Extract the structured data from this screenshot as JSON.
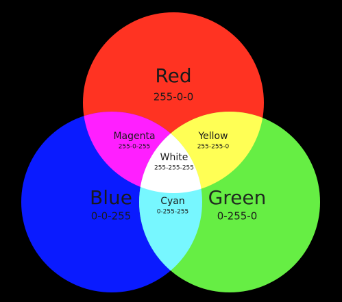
{
  "colors": {
    "background": "#000000",
    "red": "#FF3322",
    "green": "#66EE44",
    "blue": "#0A1BFF",
    "magenta": "#FF1FFF",
    "yellow": "#FFFF55",
    "cyan": "#77F7FF",
    "white": "#FFFFFF"
  },
  "primaries": {
    "red": {
      "name": "Red",
      "code": "255-0-0"
    },
    "blue": {
      "name": "Blue",
      "code": "0-0-255"
    },
    "green": {
      "name": "Green",
      "code": "0-255-0"
    }
  },
  "mixes": {
    "magenta": {
      "name": "Magenta",
      "code": "255-0-255"
    },
    "yellow": {
      "name": "Yellow",
      "code": "255-255-0"
    },
    "cyan": {
      "name": "Cyan",
      "code": "0-255-255"
    },
    "white": {
      "name": "White",
      "code": "255-255-255"
    }
  }
}
